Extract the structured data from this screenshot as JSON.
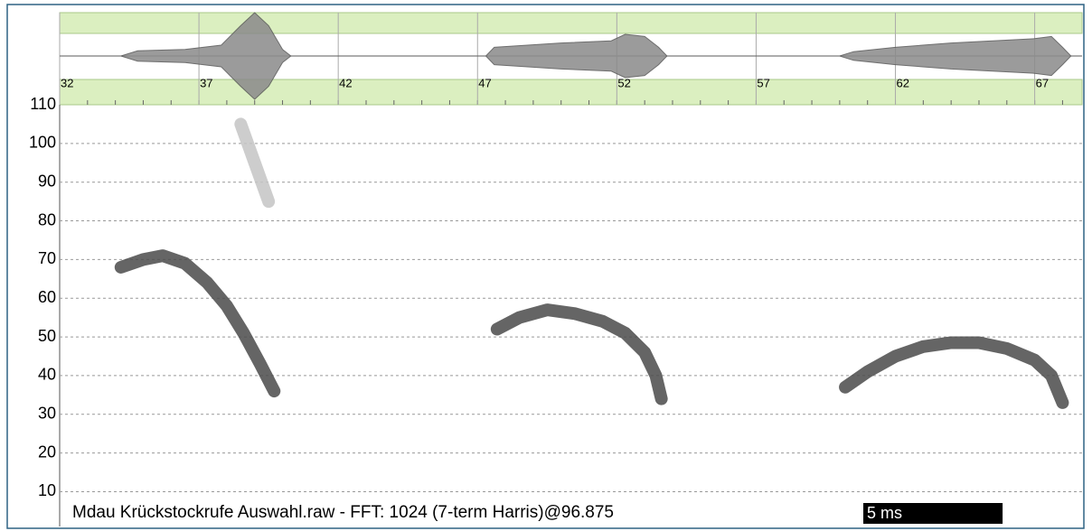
{
  "chart_data": {
    "type": "spectrogram",
    "caption": "Mdau Krückstockrufe Auswahl.raw - FFT: 1024 (7-term Harris)@96.875",
    "scale_bar": {
      "label": "5 ms",
      "value": 5
    },
    "xlim": [
      32,
      68.7
    ],
    "xticks": [
      32,
      37,
      42,
      47,
      52,
      57,
      62,
      67
    ],
    "ylim": [
      1,
      110
    ],
    "yticks": [
      10,
      20,
      30,
      40,
      50,
      60,
      70,
      80,
      90,
      100,
      110
    ],
    "grid": true,
    "waveform": {
      "x": [
        32,
        34.2,
        34.8,
        36.5,
        37.8,
        38.5,
        39,
        39.5,
        40,
        40.3,
        47.3,
        47.6,
        50,
        51.8,
        52.3,
        53,
        53.5,
        53.8,
        60,
        60.5,
        62,
        64,
        67,
        67.6,
        68,
        68.3,
        68.7
      ],
      "amplitude": [
        0,
        0,
        0.12,
        0.15,
        0.25,
        0.7,
        1,
        0.7,
        0.15,
        0,
        0,
        0.2,
        0.3,
        0.35,
        0.5,
        0.45,
        0.2,
        0,
        0,
        0.1,
        0.2,
        0.3,
        0.4,
        0.45,
        0.2,
        0,
        0
      ]
    },
    "series": [
      {
        "color": "#4a4a4a",
        "x": [
          34.2,
          35.0,
          35.7,
          36.5,
          37.3,
          38.0,
          38.6,
          39.2,
          39.7
        ],
        "values": [
          68,
          70,
          71,
          69,
          64,
          58,
          51,
          43,
          36
        ]
      },
      {
        "color": "#c4c4c4",
        "x": [
          38.5,
          39.0,
          39.5
        ],
        "values": [
          105,
          95,
          85
        ]
      },
      {
        "color": "#4a4a4a",
        "x": [
          47.7,
          48.5,
          49.5,
          50.5,
          51.5,
          52.3,
          53.0,
          53.4,
          53.6
        ],
        "values": [
          52,
          55,
          57,
          56,
          54,
          51,
          46,
          40,
          34
        ]
      },
      {
        "color": "#4a4a4a",
        "x": [
          60.2,
          61.0,
          62.0,
          63.0,
          64.0,
          65.0,
          66.0,
          67.0,
          67.6,
          68.0
        ],
        "values": [
          37,
          41,
          45,
          47.5,
          48.5,
          48.5,
          47,
          44,
          40,
          33
        ]
      }
    ]
  }
}
